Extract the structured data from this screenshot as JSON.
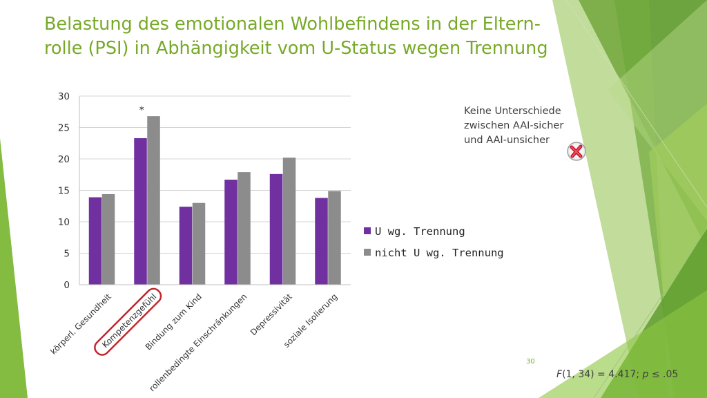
{
  "slide": {
    "title_line1": "Belastung des emotionalen Wohlbefindens in der Eltern-",
    "title_line2": "rolle (PSI) in Abhängigkeit vom U-Status wegen Trennung",
    "note_lines": [
      "Keine Unterschiede",
      "zwischen AAI-sicher",
      "und AAI-unsicher"
    ],
    "page_number": "30",
    "stat_F": "F",
    "stat_mid": "(1, 34) = 4.417; ",
    "stat_p": "p",
    "stat_end": " ≤ .05",
    "accent_color": "#77a928",
    "badge_icon": "red-x-cross-icon"
  },
  "chart_data": {
    "type": "bar",
    "categories": [
      "körperl. Gesundheit",
      "Kompetenzgefühl",
      "Bindung zum Kind",
      "rollenbedingte Einschränkungen",
      "Depressivität",
      "soziale Isolierung"
    ],
    "series": [
      {
        "name": "U wg. Trennung",
        "values": [
          13.9,
          23.3,
          12.4,
          16.7,
          17.6,
          13.8
        ],
        "color": "#7030a0"
      },
      {
        "name": "nicht U wg. Trennung",
        "values": [
          14.4,
          26.8,
          13.0,
          17.9,
          20.2,
          14.9
        ],
        "color": "#8c8c8c"
      }
    ],
    "ylim": [
      0,
      30
    ],
    "yticks": [
      0,
      5,
      10,
      15,
      20,
      25,
      30
    ],
    "grid": true,
    "legend_position": "right",
    "annotation": {
      "text": "*",
      "category_index": 1
    },
    "highlighted_category_index": 1,
    "highlight_color": "#c0272d"
  }
}
